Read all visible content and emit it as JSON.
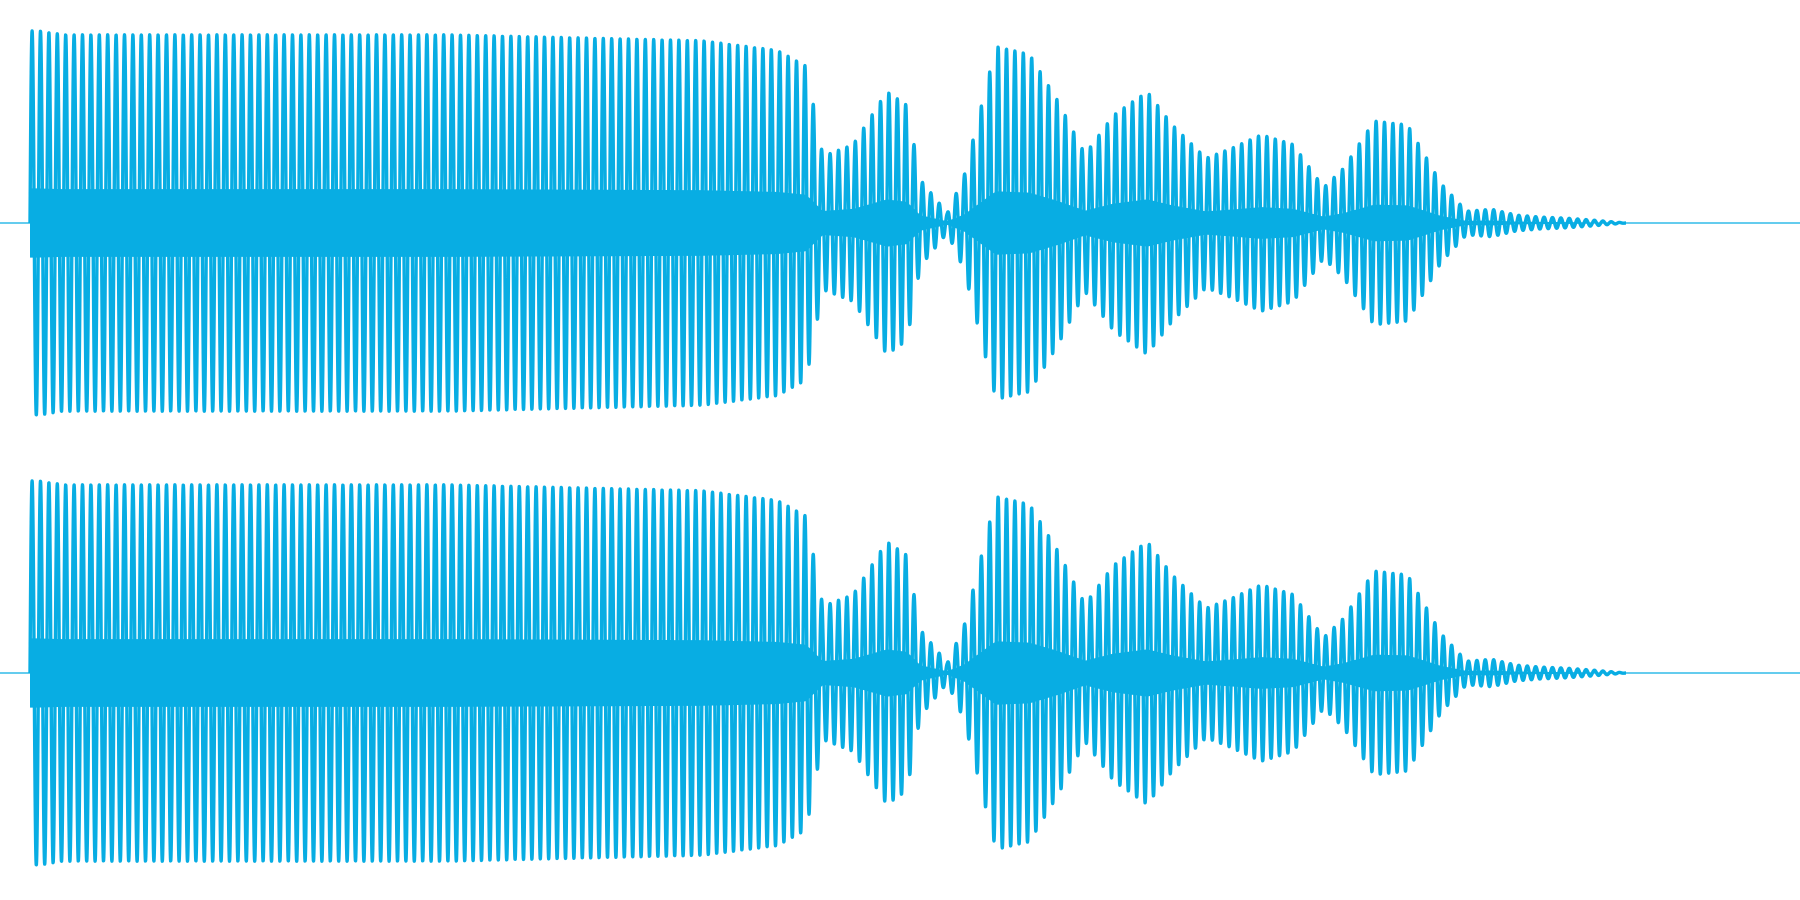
{
  "colors": {
    "background": "#ffffff",
    "waveform": "#08ade3",
    "baseline": "#08ade3"
  },
  "chart_data": {
    "type": "area",
    "title": "",
    "xlabel": "",
    "ylabel": "",
    "grid": false,
    "legend": "none",
    "xlim": [
      0,
      1
    ],
    "ylim": [
      -1,
      1
    ],
    "channels": [
      {
        "envelope": [
          [
            0.005,
            0.98
          ],
          [
            0.02,
            0.96
          ],
          [
            0.1,
            0.96
          ],
          [
            0.25,
            0.96
          ],
          [
            0.4,
            0.93
          ],
          [
            0.445,
            0.88
          ],
          [
            0.462,
            0.8
          ],
          [
            0.472,
            0.34
          ],
          [
            0.49,
            0.4
          ],
          [
            0.51,
            0.67
          ],
          [
            0.522,
            0.6
          ],
          [
            0.53,
            0.22
          ],
          [
            0.546,
            0.05
          ],
          [
            0.556,
            0.24
          ],
          [
            0.575,
            0.9
          ],
          [
            0.595,
            0.86
          ],
          [
            0.612,
            0.62
          ],
          [
            0.628,
            0.35
          ],
          [
            0.645,
            0.55
          ],
          [
            0.665,
            0.67
          ],
          [
            0.68,
            0.5
          ],
          [
            0.7,
            0.33
          ],
          [
            0.715,
            0.38
          ],
          [
            0.733,
            0.45
          ],
          [
            0.752,
            0.4
          ],
          [
            0.77,
            0.18
          ],
          [
            0.782,
            0.28
          ],
          [
            0.8,
            0.52
          ],
          [
            0.82,
            0.5
          ],
          [
            0.84,
            0.2
          ],
          [
            0.855,
            0.06
          ],
          [
            0.87,
            0.07
          ],
          [
            0.885,
            0.04
          ],
          [
            0.9,
            0.03
          ],
          [
            0.914,
            0.025
          ],
          [
            0.93,
            0.015
          ],
          [
            0.95,
            0
          ]
        ],
        "cycles": 190
      },
      {
        "envelope": [
          [
            0.005,
            0.98
          ],
          [
            0.02,
            0.96
          ],
          [
            0.1,
            0.96
          ],
          [
            0.25,
            0.96
          ],
          [
            0.4,
            0.93
          ],
          [
            0.445,
            0.88
          ],
          [
            0.462,
            0.8
          ],
          [
            0.472,
            0.34
          ],
          [
            0.49,
            0.4
          ],
          [
            0.51,
            0.67
          ],
          [
            0.522,
            0.6
          ],
          [
            0.53,
            0.22
          ],
          [
            0.546,
            0.05
          ],
          [
            0.556,
            0.24
          ],
          [
            0.575,
            0.9
          ],
          [
            0.595,
            0.86
          ],
          [
            0.612,
            0.62
          ],
          [
            0.628,
            0.35
          ],
          [
            0.645,
            0.55
          ],
          [
            0.665,
            0.67
          ],
          [
            0.68,
            0.5
          ],
          [
            0.7,
            0.33
          ],
          [
            0.715,
            0.38
          ],
          [
            0.733,
            0.45
          ],
          [
            0.752,
            0.4
          ],
          [
            0.77,
            0.18
          ],
          [
            0.782,
            0.28
          ],
          [
            0.8,
            0.52
          ],
          [
            0.82,
            0.5
          ],
          [
            0.84,
            0.2
          ],
          [
            0.855,
            0.06
          ],
          [
            0.87,
            0.07
          ],
          [
            0.885,
            0.04
          ],
          [
            0.9,
            0.03
          ],
          [
            0.914,
            0.025
          ],
          [
            0.93,
            0.015
          ],
          [
            0.95,
            0
          ]
        ],
        "cycles": 190
      }
    ]
  }
}
